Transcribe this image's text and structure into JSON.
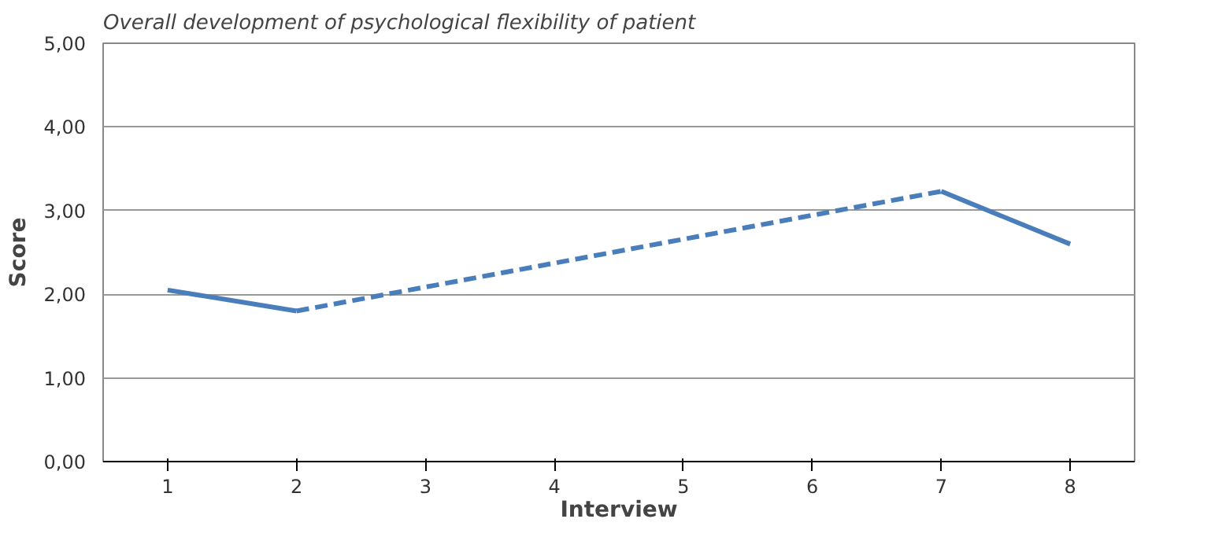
{
  "chart_data": {
    "type": "line",
    "title": "Overall development of psychological flexibility of patient",
    "xlabel": "Interview",
    "ylabel": "Score",
    "xlim": [
      0.5,
      8.5
    ],
    "xticks": [
      1,
      2,
      3,
      4,
      5,
      6,
      7,
      8
    ],
    "ylim": [
      0,
      5
    ],
    "yticks": [
      {
        "value": 0,
        "label": "0,00"
      },
      {
        "value": 1,
        "label": "1,00"
      },
      {
        "value": 2,
        "label": "2,00"
      },
      {
        "value": 3,
        "label": "3,00"
      },
      {
        "value": 4,
        "label": "4,00"
      },
      {
        "value": 5,
        "label": "5,00"
      }
    ],
    "grid": "y",
    "series": [
      {
        "color": "#4a7ebb",
        "line_style": "solid",
        "x": [
          1,
          2
        ],
        "values": [
          2.05,
          1.8
        ]
      },
      {
        "color": "#4a7ebb",
        "line_style": "dashed",
        "x": [
          2,
          7
        ],
        "values": [
          1.8,
          3.23
        ]
      },
      {
        "color": "#4a7ebb",
        "line_style": "solid",
        "x": [
          7,
          8
        ],
        "values": [
          3.23,
          2.6
        ]
      }
    ]
  }
}
